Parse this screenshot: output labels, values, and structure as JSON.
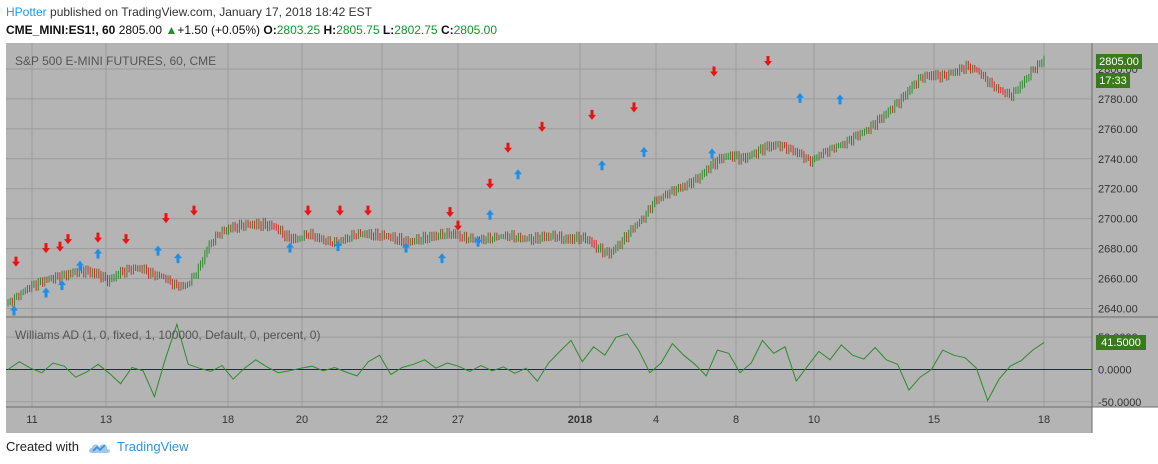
{
  "header": {
    "author": "HPotter",
    "published_text": " published on TradingView.com, January 17, 2018 18:42 EST"
  },
  "ticker": {
    "symbol": "CME_MINI:ES1!, 60",
    "last": "2805.00",
    "change": "+1.50 (+0.05%)",
    "open_label": "O:",
    "open": "2803.25",
    "high_label": "H:",
    "high": "2805.75",
    "low_label": "L:",
    "low": "2802.75",
    "close_label": "C:",
    "close": "2805.00"
  },
  "footer": {
    "created_with": "Created with",
    "brand": "TradingView"
  },
  "colors": {
    "pane_bg": "#b4b4b4",
    "grid": "#9c9c9c",
    "up_bar": "#2e8b2e",
    "down_bar": "#e0242a",
    "buy_arrow": "#1e8fe8",
    "sell_arrow": "#ee1111",
    "williams_line": "#2e8b2e",
    "zero_line": "#1a1aa6",
    "price_tag": "#3a7a1e"
  },
  "chart_data": [
    {
      "type": "line",
      "title": "S&P 500 E-MINI FUTURES, 60, CME",
      "price_label": "2805.00",
      "countdown_label": "17:33",
      "x_ticks": [
        "11",
        "13",
        "18",
        "20",
        "22",
        "27",
        "2018",
        "4",
        "8",
        "10",
        "15",
        "18"
      ],
      "y_ticks": [
        "2640.00",
        "2660.00",
        "2680.00",
        "2700.00",
        "2720.00",
        "2740.00",
        "2760.00",
        "2780.00",
        "2800.00"
      ],
      "ylim": [
        2637,
        2812
      ],
      "series": [
        {
          "values": [
            2644,
            2649,
            2655,
            2658,
            2660,
            2662,
            2664,
            2665,
            2663,
            2658,
            2664,
            2666,
            2667,
            2663,
            2661,
            2656,
            2655,
            2665,
            2682,
            2690,
            2694,
            2695,
            2696,
            2696,
            2694,
            2688,
            2686,
            2690,
            2687,
            2684,
            2686,
            2689,
            2690,
            2689,
            2688,
            2686,
            2684,
            2686,
            2688,
            2689,
            2690,
            2687,
            2686,
            2687,
            2688,
            2689,
            2687,
            2686,
            2688,
            2688,
            2686,
            2687,
            2686,
            2680,
            2676,
            2684,
            2693,
            2700,
            2712,
            2716,
            2720,
            2723,
            2727,
            2735,
            2740,
            2742,
            2740,
            2743,
            2748,
            2749,
            2747,
            2744,
            2738,
            2744,
            2747,
            2750,
            2755,
            2758,
            2765,
            2771,
            2778,
            2787,
            2794,
            2796,
            2795,
            2798,
            2802,
            2799,
            2792,
            2786,
            2782,
            2790,
            2799,
            2806
          ]
        }
      ],
      "buy_signals": [
        2646,
        2658,
        2663,
        2676,
        2684,
        2686,
        2681,
        2688,
        2689,
        2688,
        2681,
        2692,
        2710,
        2737,
        2743,
        2752,
        2751,
        2788,
        2787
      ],
      "sell_signals": [
        2664,
        2673,
        2674,
        2679,
        2680,
        2679,
        2693,
        2698,
        2698,
        2698,
        2698,
        2697,
        2688,
        2716,
        2740,
        2754,
        2762,
        2767,
        2791,
        2798
      ]
    },
    {
      "type": "line",
      "title": "Williams AD (1, 0, fixed, 1, 100000, Default, 0, percent, 0)",
      "value_label": "41.5000",
      "y_ticks": [
        "50.0000",
        "0.0000",
        "-50.0000"
      ],
      "ylim": [
        -55,
        75
      ],
      "series": [
        {
          "values": [
            0,
            12,
            2,
            -5,
            10,
            5,
            -12,
            -4,
            8,
            -6,
            -22,
            3,
            -2,
            -42,
            18,
            70,
            8,
            2,
            -3,
            6,
            -15,
            2,
            15,
            4,
            -5,
            -2,
            2,
            5,
            -2,
            3,
            -4,
            -10,
            12,
            22,
            -8,
            3,
            8,
            15,
            2,
            10,
            5,
            -3,
            6,
            -2,
            4,
            -6,
            2,
            -18,
            10,
            28,
            45,
            12,
            35,
            22,
            50,
            55,
            30,
            -5,
            10,
            40,
            22,
            8,
            -10,
            30,
            25,
            -5,
            10,
            45,
            25,
            35,
            -18,
            5,
            28,
            15,
            38,
            22,
            16,
            34,
            15,
            8,
            -32,
            -12,
            0,
            30,
            22,
            18,
            2,
            -48,
            -15,
            5,
            14,
            30,
            41.5
          ]
        }
      ]
    }
  ]
}
